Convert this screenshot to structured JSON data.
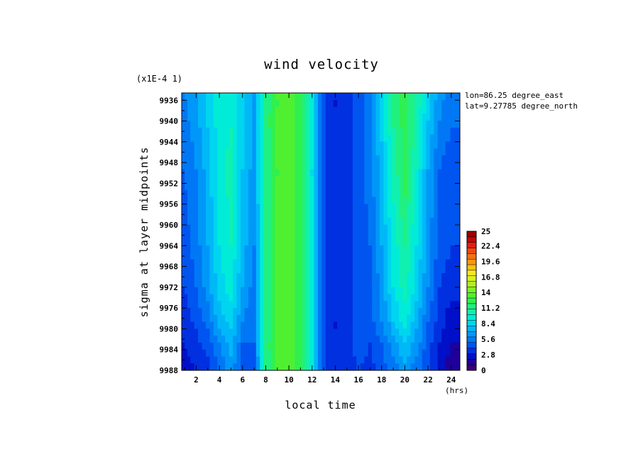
{
  "chart_data": {
    "type": "heatmap",
    "title": "wind velocity",
    "scale_note": "(x1E-4 1)",
    "annotations": [
      "lon=86.25 degree_east",
      "lat=9.27785 degree_north"
    ],
    "xlabel": "local time",
    "x_unit": "(hrs)",
    "ylabel": "sigma at layer midpoints",
    "x_ticks": [
      "2",
      "4",
      "6",
      "8",
      "10",
      "12",
      "14",
      "16",
      "18",
      "20",
      "22",
      "24"
    ],
    "y_ticks": [
      "9936",
      "9940",
      "9944",
      "9948",
      "9952",
      "9956",
      "9960",
      "9964",
      "9968",
      "9972",
      "9976",
      "9980",
      "9984",
      "9988"
    ],
    "xlim": [
      0.75,
      24.75
    ],
    "ylim": [
      9934.6,
      9988
    ],
    "y_inverted": true,
    "x": [
      1,
      2,
      3,
      4,
      5,
      6,
      7,
      8,
      9,
      10,
      11,
      12,
      13,
      14,
      15,
      16,
      17,
      18,
      19,
      20,
      21,
      22,
      23,
      24
    ],
    "y": [
      9934.6,
      9949,
      9964,
      9972,
      9978,
      9983,
      9988
    ],
    "z": [
      [
        6,
        7,
        8.5,
        9.5,
        9.5,
        8,
        7,
        11.5,
        13,
        13.5,
        12.5,
        9,
        4,
        3,
        3.5,
        4.5,
        6,
        9,
        11.5,
        12.5,
        11,
        8.5,
        6.5,
        5.5
      ],
      [
        5,
        6,
        7.5,
        9.5,
        10.5,
        8,
        6.5,
        11.5,
        13,
        13.5,
        12.5,
        9,
        4,
        3,
        3.5,
        4.5,
        5.5,
        7.5,
        10.5,
        12.5,
        10,
        7,
        5,
        4.5
      ],
      [
        4.5,
        5.5,
        7,
        9,
        10,
        7.5,
        6,
        11.5,
        13,
        13.5,
        12.5,
        9,
        4,
        3,
        3.5,
        4.5,
        5,
        7,
        9.5,
        11,
        9,
        6.5,
        4.5,
        4
      ],
      [
        4,
        5,
        6.5,
        8.5,
        9.5,
        7,
        5.5,
        11.5,
        13,
        13.5,
        12.5,
        9,
        4,
        3,
        3.5,
        4.5,
        4.5,
        6.5,
        9,
        10.5,
        8.5,
        6,
        4,
        3.5
      ],
      [
        3.5,
        4.5,
        5.5,
        7.5,
        8.5,
        6,
        5.5,
        11.5,
        13,
        13.5,
        12.5,
        9,
        4,
        3,
        3.5,
        4.5,
        4.5,
        6,
        8,
        9.5,
        7.5,
        5,
        3.5,
        2.5
      ],
      [
        3,
        3.5,
        4.5,
        6,
        7.5,
        5,
        5,
        11.5,
        13,
        13.5,
        12.5,
        9,
        4,
        3,
        3.5,
        4.5,
        4,
        5,
        6.5,
        8,
        6.5,
        4.5,
        3,
        2
      ],
      [
        2.5,
        3,
        3.5,
        5,
        6.5,
        4.5,
        4.5,
        11.5,
        13,
        13.5,
        12.5,
        9,
        4,
        3,
        3.5,
        4,
        3.5,
        4.5,
        5.5,
        6.5,
        5.5,
        4,
        2.5,
        1.5
      ]
    ],
    "colorbar": {
      "min": 0,
      "max": 25,
      "tick_labels": [
        "25",
        "22.4",
        "19.6",
        "16.8",
        "14",
        "11.2",
        "8.4",
        "5.6",
        "2.8",
        "0"
      ],
      "colors": [
        "#3b0070",
        "#20009a",
        "#0010c8",
        "#0030e0",
        "#0055f0",
        "#0078f5",
        "#0098f8",
        "#00b8f8",
        "#00d5f0",
        "#00ecd8",
        "#10f0b0",
        "#20f080",
        "#30f050",
        "#50f030",
        "#80f028",
        "#b0f020",
        "#d8f020",
        "#f8e820",
        "#f8c018",
        "#f89810",
        "#f87010",
        "#f04810",
        "#e02010",
        "#c00808",
        "#a00000"
      ]
    }
  }
}
